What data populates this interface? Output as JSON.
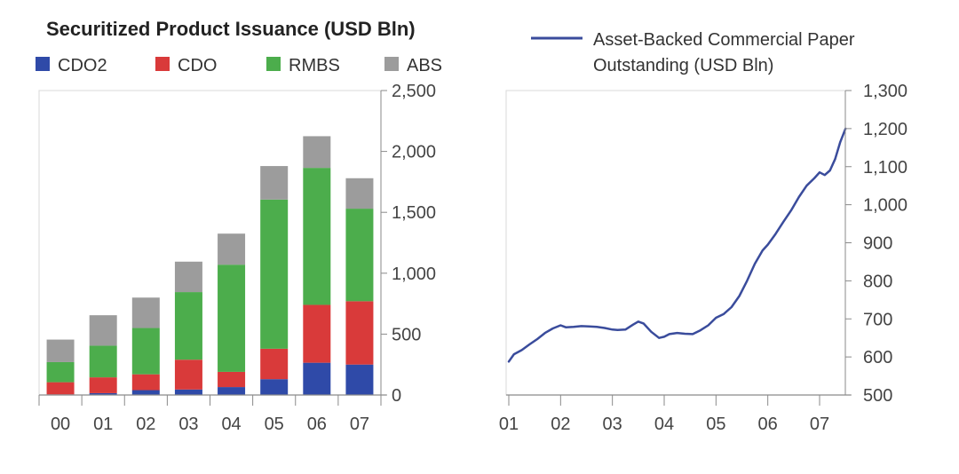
{
  "chart_data": [
    {
      "type": "bar",
      "stacked": true,
      "title": "Securitized Product Issuance (USD Bln)",
      "categories": [
        "00",
        "01",
        "02",
        "03",
        "04",
        "05",
        "06",
        "07"
      ],
      "series": [
        {
          "name": "CDO2",
          "color": "#2f4aa8",
          "values": [
            5,
            15,
            40,
            45,
            65,
            130,
            265,
            250
          ]
        },
        {
          "name": "CDO",
          "color": "#d93a3a",
          "values": [
            100,
            130,
            130,
            245,
            125,
            250,
            475,
            520
          ]
        },
        {
          "name": "RMBS",
          "color": "#4cad4c",
          "values": [
            165,
            260,
            380,
            555,
            880,
            1225,
            1125,
            760
          ]
        },
        {
          "name": "ABS",
          "color": "#9c9c9c",
          "values": [
            185,
            250,
            250,
            250,
            255,
            275,
            260,
            250
          ]
        }
      ],
      "ylim": [
        0,
        2500
      ],
      "yticks": [
        0,
        500,
        1000,
        1500,
        2000,
        2500
      ],
      "ytick_labels": [
        "0",
        "500",
        "1,000",
        "1,500",
        "2,000",
        "2,500"
      ],
      "y_axis_side": "right",
      "legend_position": "top",
      "grid": false
    },
    {
      "type": "line",
      "series": [
        {
          "name": "Asset-Backed Commercial Paper Outstanding (USD Bln)",
          "color": "#3a4c9c",
          "x": [
            2001.0,
            2001.1,
            2001.25,
            2001.4,
            2001.55,
            2001.7,
            2001.85,
            2002.0,
            2002.1,
            2002.25,
            2002.4,
            2002.55,
            2002.7,
            2002.85,
            2003.0,
            2003.1,
            2003.25,
            2003.4,
            2003.5,
            2003.6,
            2003.75,
            2003.9,
            2004.0,
            2004.1,
            2004.25,
            2004.4,
            2004.55,
            2004.7,
            2004.85,
            2005.0,
            2005.15,
            2005.3,
            2005.45,
            2005.6,
            2005.75,
            2005.9,
            2006.0,
            2006.15,
            2006.3,
            2006.45,
            2006.6,
            2006.75,
            2006.9,
            2007.0,
            2007.1,
            2007.2,
            2007.3,
            2007.4,
            2007.5
          ],
          "y": [
            588,
            607,
            618,
            633,
            647,
            663,
            675,
            683,
            678,
            679,
            681,
            680,
            679,
            676,
            672,
            671,
            672,
            685,
            693,
            688,
            666,
            650,
            653,
            660,
            663,
            661,
            660,
            670,
            683,
            703,
            713,
            731,
            760,
            800,
            845,
            880,
            895,
            923,
            955,
            985,
            1020,
            1050,
            1070,
            1085,
            1078,
            1090,
            1120,
            1165,
            1200
          ]
        }
      ],
      "xticks": [
        2001,
        2002,
        2003,
        2004,
        2005,
        2006,
        2007
      ],
      "xtick_labels": [
        "01",
        "02",
        "03",
        "04",
        "05",
        "06",
        "07"
      ],
      "xlim": [
        2001,
        2007.6
      ],
      "ylim": [
        500,
        1300
      ],
      "yticks": [
        500,
        600,
        700,
        800,
        900,
        1000,
        1100,
        1200,
        1300
      ],
      "ytick_labels": [
        "500",
        "600",
        "700",
        "800",
        "900",
        "1,000",
        "1,100",
        "1,200",
        "1,300"
      ],
      "y_axis_side": "right",
      "legend_position": "top",
      "grid": false
    }
  ]
}
